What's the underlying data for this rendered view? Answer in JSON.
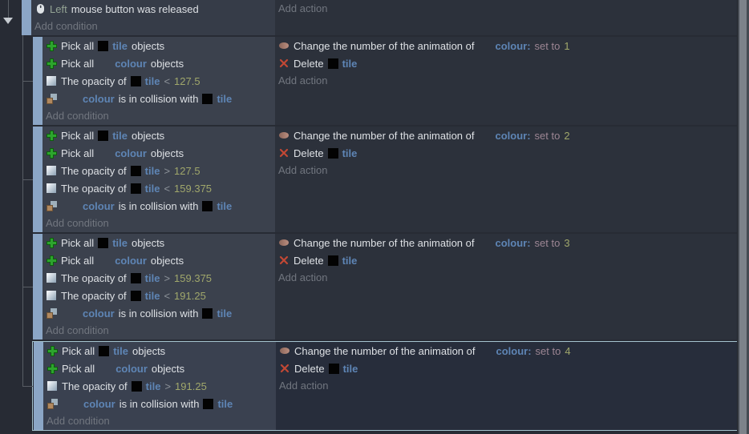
{
  "colors": {
    "text": "#dde0e4",
    "object_name": "#5e85b5",
    "parameter_number": "#a0a76b",
    "key_parameter": "#93a394",
    "set_to": "#9d8694",
    "selection_border": "#a5c3cf",
    "event_bar": "#8ba6c6"
  },
  "root_event": {
    "condition": {
      "icon": "mouse",
      "segments": [
        {
          "k": "sage",
          "t": "Left"
        },
        {
          "k": "t",
          "t": "mouse button was released"
        }
      ]
    },
    "add_condition": "Add condition",
    "add_action": "Add action"
  },
  "sub_events": [
    {
      "selected": false,
      "conditions": [
        {
          "icon": "pick",
          "segments": [
            {
              "k": "t",
              "t": "Pick all"
            },
            {
              "k": "thumb"
            },
            {
              "k": "obj",
              "t": "tile"
            },
            {
              "k": "t",
              "t": "objects"
            }
          ]
        },
        {
          "icon": "pick",
          "segments": [
            {
              "k": "t",
              "t": "Pick all"
            },
            {
              "k": "sp16"
            },
            {
              "k": "obj",
              "t": "colour"
            },
            {
              "k": "t",
              "t": "objects"
            }
          ]
        },
        {
          "icon": "opacity",
          "segments": [
            {
              "k": "t",
              "t": "The opacity of"
            },
            {
              "k": "thumb"
            },
            {
              "k": "obj",
              "t": "tile"
            },
            {
              "k": "op",
              "t": "<"
            },
            {
              "k": "num",
              "t": "127.5"
            }
          ]
        },
        {
          "icon": "collision",
          "segments": [
            {
              "k": "sp24"
            },
            {
              "k": "obj",
              "t": "colour"
            },
            {
              "k": "t",
              "t": "is in collision with"
            },
            {
              "k": "thumb"
            },
            {
              "k": "obj",
              "t": "tile"
            }
          ]
        }
      ],
      "add_condition": "Add condition",
      "actions": [
        {
          "icon": "anim",
          "segments": [
            {
              "k": "t",
              "t": "Change the number of the animation of"
            },
            {
              "k": "sp16"
            },
            {
              "k": "obj",
              "t": "colour:"
            },
            {
              "k": "setto",
              "t": "set to"
            },
            {
              "k": "num",
              "t": "1"
            }
          ]
        },
        {
          "icon": "delete",
          "segments": [
            {
              "k": "t",
              "t": "Delete"
            },
            {
              "k": "thumb"
            },
            {
              "k": "obj",
              "t": "tile"
            }
          ]
        }
      ],
      "add_action": "Add action"
    },
    {
      "selected": false,
      "conditions": [
        {
          "icon": "pick",
          "segments": [
            {
              "k": "t",
              "t": "Pick all"
            },
            {
              "k": "thumb"
            },
            {
              "k": "obj",
              "t": "tile"
            },
            {
              "k": "t",
              "t": "objects"
            }
          ]
        },
        {
          "icon": "pick",
          "segments": [
            {
              "k": "t",
              "t": "Pick all"
            },
            {
              "k": "sp16"
            },
            {
              "k": "obj",
              "t": "colour"
            },
            {
              "k": "t",
              "t": "objects"
            }
          ]
        },
        {
          "icon": "opacity",
          "segments": [
            {
              "k": "t",
              "t": "The opacity of"
            },
            {
              "k": "thumb"
            },
            {
              "k": "obj",
              "t": "tile"
            },
            {
              "k": "op",
              "t": ">"
            },
            {
              "k": "num",
              "t": "127.5"
            }
          ]
        },
        {
          "icon": "opacity",
          "segments": [
            {
              "k": "t",
              "t": "The opacity of"
            },
            {
              "k": "thumb"
            },
            {
              "k": "obj",
              "t": "tile"
            },
            {
              "k": "op",
              "t": "<"
            },
            {
              "k": "num",
              "t": "159.375"
            }
          ]
        },
        {
          "icon": "collision",
          "segments": [
            {
              "k": "sp24"
            },
            {
              "k": "obj",
              "t": "colour"
            },
            {
              "k": "t",
              "t": "is in collision with"
            },
            {
              "k": "thumb"
            },
            {
              "k": "obj",
              "t": "tile"
            }
          ]
        }
      ],
      "add_condition": "Add condition",
      "actions": [
        {
          "icon": "anim",
          "segments": [
            {
              "k": "t",
              "t": "Change the number of the animation of"
            },
            {
              "k": "sp16"
            },
            {
              "k": "obj",
              "t": "colour:"
            },
            {
              "k": "setto",
              "t": "set to"
            },
            {
              "k": "num",
              "t": "2"
            }
          ]
        },
        {
          "icon": "delete",
          "segments": [
            {
              "k": "t",
              "t": "Delete"
            },
            {
              "k": "thumb"
            },
            {
              "k": "obj",
              "t": "tile"
            }
          ]
        }
      ],
      "add_action": "Add action"
    },
    {
      "selected": false,
      "conditions": [
        {
          "icon": "pick",
          "segments": [
            {
              "k": "t",
              "t": "Pick all"
            },
            {
              "k": "thumb"
            },
            {
              "k": "obj",
              "t": "tile"
            },
            {
              "k": "t",
              "t": "objects"
            }
          ]
        },
        {
          "icon": "pick",
          "segments": [
            {
              "k": "t",
              "t": "Pick all"
            },
            {
              "k": "sp16"
            },
            {
              "k": "obj",
              "t": "colour"
            },
            {
              "k": "t",
              "t": "objects"
            }
          ]
        },
        {
          "icon": "opacity",
          "segments": [
            {
              "k": "t",
              "t": "The opacity of"
            },
            {
              "k": "thumb"
            },
            {
              "k": "obj",
              "t": "tile"
            },
            {
              "k": "op",
              "t": ">"
            },
            {
              "k": "num",
              "t": "159.375"
            }
          ]
        },
        {
          "icon": "opacity",
          "segments": [
            {
              "k": "t",
              "t": "The opacity of"
            },
            {
              "k": "thumb"
            },
            {
              "k": "obj",
              "t": "tile"
            },
            {
              "k": "op",
              "t": "<"
            },
            {
              "k": "num",
              "t": "191.25"
            }
          ]
        },
        {
          "icon": "collision",
          "segments": [
            {
              "k": "sp24"
            },
            {
              "k": "obj",
              "t": "colour"
            },
            {
              "k": "t",
              "t": "is in collision with"
            },
            {
              "k": "thumb"
            },
            {
              "k": "obj",
              "t": "tile"
            }
          ]
        }
      ],
      "add_condition": "Add condition",
      "actions": [
        {
          "icon": "anim",
          "segments": [
            {
              "k": "t",
              "t": "Change the number of the animation of"
            },
            {
              "k": "sp16"
            },
            {
              "k": "obj",
              "t": "colour:"
            },
            {
              "k": "setto",
              "t": "set to"
            },
            {
              "k": "num",
              "t": "3"
            }
          ]
        },
        {
          "icon": "delete",
          "segments": [
            {
              "k": "t",
              "t": "Delete"
            },
            {
              "k": "thumb"
            },
            {
              "k": "obj",
              "t": "tile"
            }
          ]
        }
      ],
      "add_action": "Add action"
    },
    {
      "selected": true,
      "conditions": [
        {
          "icon": "pick",
          "segments": [
            {
              "k": "t",
              "t": "Pick all"
            },
            {
              "k": "thumb"
            },
            {
              "k": "obj",
              "t": "tile"
            },
            {
              "k": "t",
              "t": "objects"
            }
          ]
        },
        {
          "icon": "pick",
          "segments": [
            {
              "k": "t",
              "t": "Pick all"
            },
            {
              "k": "sp16"
            },
            {
              "k": "obj",
              "t": "colour"
            },
            {
              "k": "t",
              "t": "objects"
            }
          ]
        },
        {
          "icon": "opacity",
          "segments": [
            {
              "k": "t",
              "t": "The opacity of"
            },
            {
              "k": "thumb"
            },
            {
              "k": "obj",
              "t": "tile"
            },
            {
              "k": "op",
              "t": ">"
            },
            {
              "k": "num",
              "t": "191.25"
            }
          ]
        },
        {
          "icon": "collision",
          "segments": [
            {
              "k": "sp24"
            },
            {
              "k": "obj",
              "t": "colour"
            },
            {
              "k": "t",
              "t": "is in collision with"
            },
            {
              "k": "thumb"
            },
            {
              "k": "obj",
              "t": "tile"
            }
          ]
        }
      ],
      "add_condition": "Add condition",
      "actions": [
        {
          "icon": "anim",
          "segments": [
            {
              "k": "t",
              "t": "Change the number of the animation of"
            },
            {
              "k": "sp16"
            },
            {
              "k": "obj",
              "t": "colour:"
            },
            {
              "k": "setto",
              "t": "set to"
            },
            {
              "k": "num",
              "t": "4"
            }
          ]
        },
        {
          "icon": "delete",
          "segments": [
            {
              "k": "t",
              "t": "Delete"
            },
            {
              "k": "thumb"
            },
            {
              "k": "obj",
              "t": "tile"
            }
          ]
        }
      ],
      "add_action": "Add action"
    }
  ]
}
